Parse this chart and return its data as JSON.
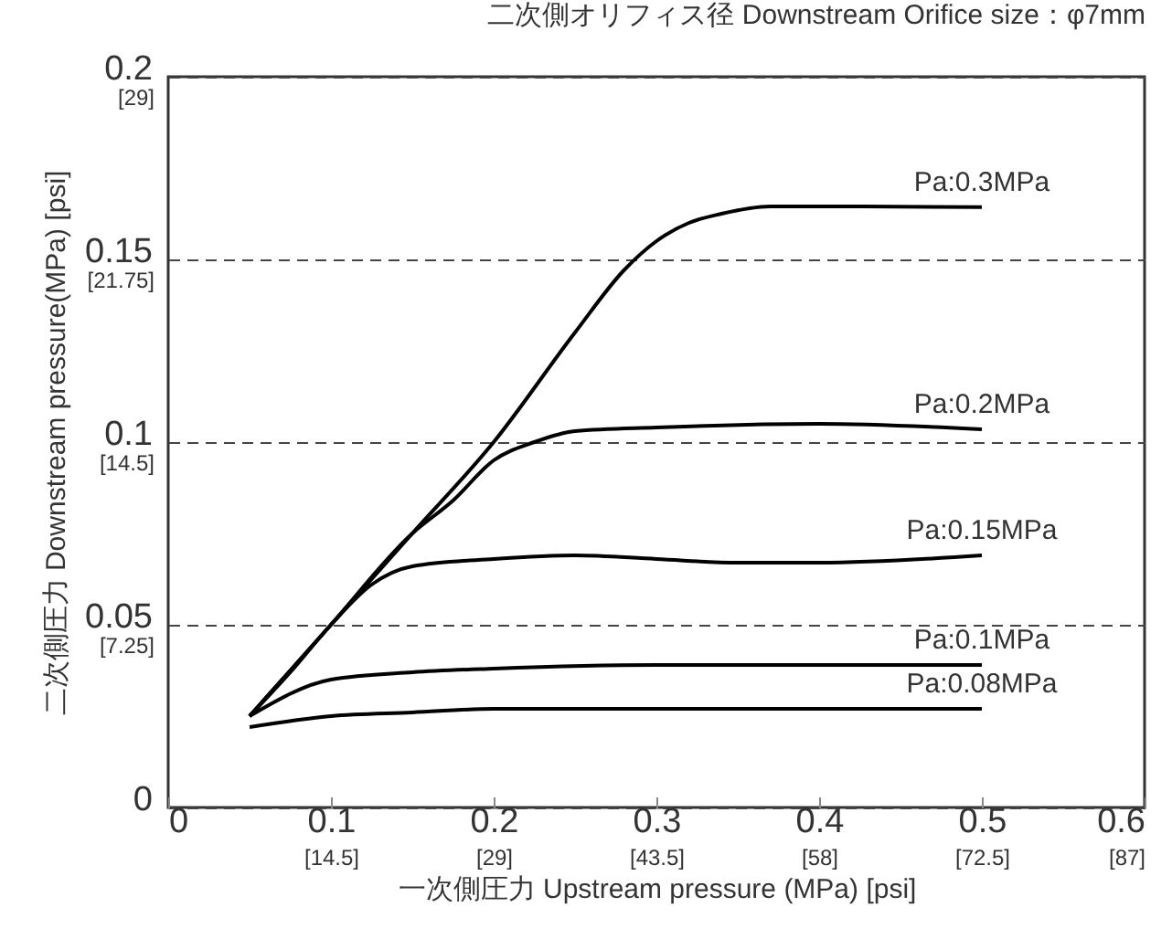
{
  "chart_data": {
    "type": "line",
    "title": "二次側オリフィス径 Downstream Orifice size：φ7mm",
    "xlabel": "一次側圧力  Upstream pressure (MPa)  [psi]",
    "ylabel": "二次側圧力 Downstream pressure(MPa)  [psi]",
    "xlim": [
      0,
      0.6
    ],
    "xticks": [
      0,
      0.1,
      0.2,
      0.3,
      0.4,
      0.5,
      0.6
    ],
    "x2lim": [
      0,
      87
    ],
    "x2ticks": [
      {
        "value": 14.5,
        "label": "[14.5]"
      },
      {
        "value": 29,
        "label": "[29]"
      },
      {
        "value": 43.5,
        "label": "[43.5]"
      },
      {
        "value": 58,
        "label": "[58]"
      },
      {
        "value": 72.5,
        "label": "[72.5]"
      },
      {
        "value": 87,
        "label": "[87]"
      }
    ],
    "ylim": [
      0,
      0.2
    ],
    "yticks": [
      0,
      0.05,
      0.1,
      0.15,
      0.2
    ],
    "y2lim": [
      0,
      29
    ],
    "y2ticks": [
      {
        "value": 7.25,
        "label": "[7.25]"
      },
      {
        "value": 14.5,
        "label": "[14.5]"
      },
      {
        "value": 21.75,
        "label": "[21.75]"
      },
      {
        "value": 29,
        "label": "[29]"
      }
    ],
    "grid": "y",
    "legend": false,
    "line_style": "solid",
    "marker": "none",
    "series": [
      {
        "name": "Pa:0.3MPa",
        "color": "#000000",
        "x": [
          0.05,
          0.1,
          0.15,
          0.2,
          0.25,
          0.28,
          0.3,
          0.32,
          0.34,
          0.37,
          0.4,
          0.5
        ],
        "values": [
          0.025,
          0.05,
          0.075,
          0.1,
          0.13,
          0.147,
          0.155,
          0.16,
          0.1625,
          0.1645,
          0.1645,
          0.1643
        ]
      },
      {
        "name": "Pa:0.2MPa",
        "color": "#000000",
        "x": [
          0.05,
          0.1,
          0.15,
          0.175,
          0.2,
          0.225,
          0.25,
          0.3,
          0.4,
          0.5
        ],
        "values": [
          0.025,
          0.05,
          0.075,
          0.084,
          0.095,
          0.1,
          0.103,
          0.104,
          0.105,
          0.1035
        ]
      },
      {
        "name": "Pa:0.15MPa",
        "color": "#000000",
        "x": [
          0.05,
          0.075,
          0.1,
          0.125,
          0.15,
          0.2,
          0.25,
          0.3,
          0.35,
          0.4,
          0.5
        ],
        "values": [
          0.025,
          0.037,
          0.05,
          0.061,
          0.066,
          0.068,
          0.069,
          0.068,
          0.067,
          0.067,
          0.069
        ]
      },
      {
        "name": "Pa:0.1MPa",
        "color": "#000000",
        "x": [
          0.05,
          0.1,
          0.15,
          0.2,
          0.3,
          0.4,
          0.5
        ],
        "values": [
          0.025,
          0.035,
          0.037,
          0.038,
          0.039,
          0.039,
          0.039
        ]
      },
      {
        "name": "Pa:0.08MPa",
        "color": "#000000",
        "x": [
          0.05,
          0.1,
          0.15,
          0.2,
          0.3,
          0.4,
          0.5
        ],
        "values": [
          0.022,
          0.025,
          0.026,
          0.027,
          0.027,
          0.027,
          0.027
        ]
      }
    ]
  }
}
